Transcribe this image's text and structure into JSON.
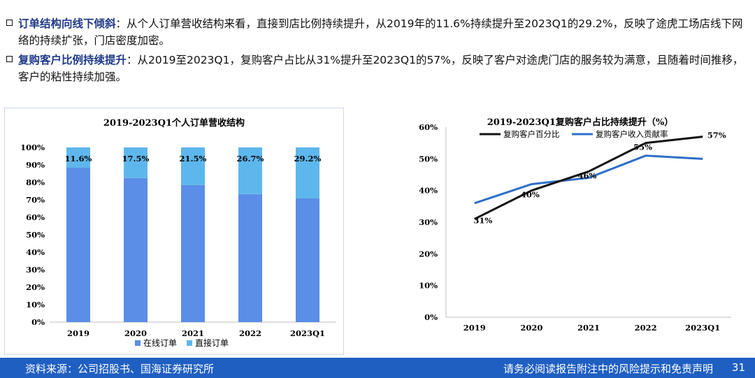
{
  "bullets": [
    {
      "head": "订单结构向线下倾斜",
      "sep": "：",
      "body": "从个人订单营收结构来看，直接到店比例持续提升，从2019年的11.6%持续提升至2023Q1的29.2%，反映了途虎工场店线下网络的持续扩张，门店密度加密。"
    },
    {
      "head": "复购客户比例持续提升",
      "sep": "：",
      "body": "从2019至2023Q1，复购客户占比从31%提升至2023Q1的57%，反映了客户对途虎门店的服务较为满意，且随着时间推移，客户的粘性持续加强。"
    }
  ],
  "chart_data": [
    {
      "type": "bar",
      "stacked": true,
      "title": "2019-2023Q1个人订单营收结构",
      "categories": [
        "2019",
        "2020",
        "2021",
        "2022",
        "2023Q1"
      ],
      "series": [
        {
          "name": "在线订单",
          "values": [
            88.4,
            82.5,
            78.5,
            73.3,
            70.8
          ],
          "color": "#5b8ee6"
        },
        {
          "name": "直接订单",
          "values": [
            11.6,
            17.5,
            21.5,
            26.7,
            29.2
          ],
          "color": "#5eb7ec"
        }
      ],
      "data_labels": [
        "11.6%",
        "17.5%",
        "21.5%",
        "26.7%",
        "29.2%"
      ],
      "yticks": [
        "0%",
        "10%",
        "20%",
        "30%",
        "40%",
        "50%",
        "60%",
        "70%",
        "80%",
        "90%",
        "100%"
      ],
      "ylim": [
        0,
        100
      ],
      "legend_position": "bottom"
    },
    {
      "type": "line",
      "title": "2019-2023Q1复购客户占比持续提升（%）",
      "categories": [
        "2019",
        "2020",
        "2021",
        "2022",
        "2023Q1"
      ],
      "series": [
        {
          "name": "复购客户百分比",
          "values": [
            31,
            40,
            46,
            55,
            57
          ],
          "color": "#111111",
          "labels": [
            "31%",
            "40%",
            "46%",
            "55%",
            "57%"
          ]
        },
        {
          "name": "复购客户收入贡献率",
          "values": [
            36,
            42,
            44,
            51,
            50
          ],
          "color": "#2e6fc8"
        }
      ],
      "yticks": [
        "0%",
        "10%",
        "20%",
        "30%",
        "40%",
        "50%",
        "60%"
      ],
      "ylim": [
        0,
        60
      ],
      "legend_position": "top"
    }
  ],
  "footer": {
    "source": "资料来源：公司招股书、国海证券研究所",
    "disclaimer": "请务必阅读报告附注中的风险提示和免责声明",
    "page": "31"
  }
}
